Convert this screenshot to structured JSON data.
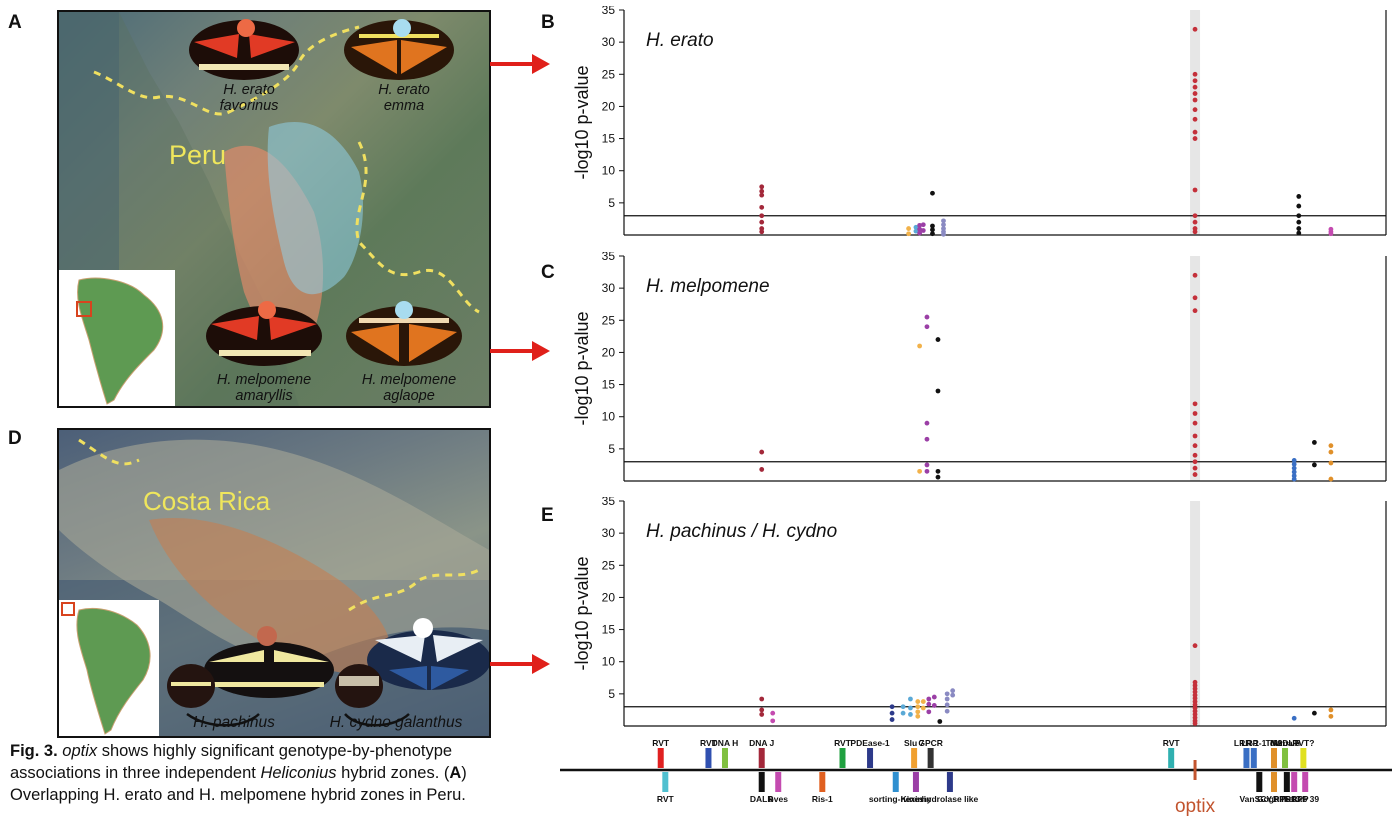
{
  "panels": {
    "A": "A",
    "B": "B",
    "C": "C",
    "D": "D",
    "E": "E"
  },
  "map_a": {
    "country": "Peru",
    "butterflies": [
      {
        "line1": "H. erato",
        "line2": "favorinus"
      },
      {
        "line1": "H. erato",
        "line2": "emma"
      },
      {
        "line1": "H. melpomene",
        "line2": "amaryllis"
      },
      {
        "line1": "H. melpomene",
        "line2": "aglaope"
      }
    ]
  },
  "map_d": {
    "country": "Costa Rica",
    "butterflies": [
      {
        "label": "H. pachinus"
      },
      {
        "label": "H. cydno galanthus"
      }
    ]
  },
  "caption": {
    "fig": "Fig. 3.",
    "gene": "optix",
    "text1": " shows highly significant genotype-by-phenotype associations in three independent ",
    "genus": "Heliconius",
    "text2": " hybrid zones. (",
    "A": "A",
    "text3": ")",
    "line3": "Overlapping H. erato and H. melpomene hybrid zones in Peru."
  },
  "chart_data": [
    {
      "type": "scatter",
      "title": "H. erato",
      "ylabel": "-log10 p-value",
      "ylim": [
        0,
        35
      ],
      "yticks": [
        "5",
        "10",
        "15",
        "20",
        "25",
        "30",
        "35"
      ],
      "threshold": 3,
      "x_range": [
        0,
        830
      ],
      "highlight_x": 622,
      "points": [
        {
          "x": 150,
          "y": 7.5,
          "c": "#a3283a"
        },
        {
          "x": 150,
          "y": 6.8,
          "c": "#a3283a"
        },
        {
          "x": 150,
          "y": 6.2,
          "c": "#a3283a"
        },
        {
          "x": 150,
          "y": 4.3,
          "c": "#a3283a"
        },
        {
          "x": 150,
          "y": 3.0,
          "c": "#a3283a"
        },
        {
          "x": 150,
          "y": 2.0,
          "c": "#a3283a"
        },
        {
          "x": 150,
          "y": 1.0,
          "c": "#a3283a"
        },
        {
          "x": 150,
          "y": 0.5,
          "c": "#a3283a"
        },
        {
          "x": 310,
          "y": 1.0,
          "c": "#f2b24a"
        },
        {
          "x": 310,
          "y": 0.2,
          "c": "#f2b24a"
        },
        {
          "x": 318,
          "y": 1.2,
          "c": "#5aa9d6"
        },
        {
          "x": 318,
          "y": 0.6,
          "c": "#5aa9d6"
        },
        {
          "x": 322,
          "y": 1.5,
          "c": "#9b3fa6"
        },
        {
          "x": 322,
          "y": 0.9,
          "c": "#9b3fa6"
        },
        {
          "x": 322,
          "y": 0.3,
          "c": "#9b3fa6"
        },
        {
          "x": 326,
          "y": 1.6,
          "c": "#9b3fa6"
        },
        {
          "x": 326,
          "y": 0.7,
          "c": "#9b3fa6"
        },
        {
          "x": 336,
          "y": 6.5,
          "c": "#111111"
        },
        {
          "x": 336,
          "y": 1.4,
          "c": "#111111"
        },
        {
          "x": 336,
          "y": 0.8,
          "c": "#111111"
        },
        {
          "x": 336,
          "y": 0.2,
          "c": "#111111"
        },
        {
          "x": 348,
          "y": 2.2,
          "c": "#8a8ac2"
        },
        {
          "x": 348,
          "y": 1.6,
          "c": "#8a8ac2"
        },
        {
          "x": 348,
          "y": 1.0,
          "c": "#8a8ac2"
        },
        {
          "x": 348,
          "y": 0.5,
          "c": "#8a8ac2"
        },
        {
          "x": 348,
          "y": 0.1,
          "c": "#8a8ac2"
        },
        {
          "x": 622,
          "y": 32,
          "c": "#c4303a"
        },
        {
          "x": 622,
          "y": 25,
          "c": "#c4303a"
        },
        {
          "x": 622,
          "y": 24,
          "c": "#c4303a"
        },
        {
          "x": 622,
          "y": 23,
          "c": "#c4303a"
        },
        {
          "x": 622,
          "y": 22,
          "c": "#c4303a"
        },
        {
          "x": 622,
          "y": 21,
          "c": "#c4303a"
        },
        {
          "x": 622,
          "y": 19.5,
          "c": "#c4303a"
        },
        {
          "x": 622,
          "y": 18,
          "c": "#c4303a"
        },
        {
          "x": 622,
          "y": 16,
          "c": "#c4303a"
        },
        {
          "x": 622,
          "y": 15,
          "c": "#c4303a"
        },
        {
          "x": 622,
          "y": 7,
          "c": "#c4303a"
        },
        {
          "x": 622,
          "y": 3,
          "c": "#c4303a"
        },
        {
          "x": 622,
          "y": 2,
          "c": "#c4303a"
        },
        {
          "x": 622,
          "y": 1,
          "c": "#c4303a"
        },
        {
          "x": 622,
          "y": 0.5,
          "c": "#c4303a"
        },
        {
          "x": 735,
          "y": 6.0,
          "c": "#111111"
        },
        {
          "x": 735,
          "y": 4.5,
          "c": "#111111"
        },
        {
          "x": 735,
          "y": 3.0,
          "c": "#111111"
        },
        {
          "x": 735,
          "y": 2.0,
          "c": "#111111"
        },
        {
          "x": 735,
          "y": 1.0,
          "c": "#111111"
        },
        {
          "x": 735,
          "y": 0.3,
          "c": "#111111"
        },
        {
          "x": 770,
          "y": 0.9,
          "c": "#c44bb0"
        },
        {
          "x": 770,
          "y": 0.5,
          "c": "#c44bb0"
        },
        {
          "x": 770,
          "y": 0.2,
          "c": "#c44bb0"
        }
      ]
    },
    {
      "type": "scatter",
      "title": "H. melpomene",
      "ylabel": "-log10 p-value",
      "ylim": [
        0,
        35
      ],
      "yticks": [
        "5",
        "10",
        "15",
        "20",
        "25",
        "30",
        "35"
      ],
      "threshold": 3,
      "x_range": [
        0,
        830
      ],
      "highlight_x": 622,
      "points": [
        {
          "x": 150,
          "y": 4.5,
          "c": "#a3283a"
        },
        {
          "x": 150,
          "y": 1.8,
          "c": "#a3283a"
        },
        {
          "x": 322,
          "y": 21,
          "c": "#f2b24a"
        },
        {
          "x": 322,
          "y": 1.5,
          "c": "#f2b24a"
        },
        {
          "x": 330,
          "y": 25.5,
          "c": "#9b3fa6"
        },
        {
          "x": 330,
          "y": 24,
          "c": "#9b3fa6"
        },
        {
          "x": 330,
          "y": 9,
          "c": "#9b3fa6"
        },
        {
          "x": 330,
          "y": 6.5,
          "c": "#9b3fa6"
        },
        {
          "x": 330,
          "y": 2.5,
          "c": "#9b3fa6"
        },
        {
          "x": 330,
          "y": 1.5,
          "c": "#9b3fa6"
        },
        {
          "x": 342,
          "y": 22,
          "c": "#111111"
        },
        {
          "x": 342,
          "y": 14,
          "c": "#111111"
        },
        {
          "x": 342,
          "y": 1.5,
          "c": "#111111"
        },
        {
          "x": 342,
          "y": 0.6,
          "c": "#111111"
        },
        {
          "x": 622,
          "y": 32,
          "c": "#c4303a"
        },
        {
          "x": 622,
          "y": 28.5,
          "c": "#c4303a"
        },
        {
          "x": 622,
          "y": 26.5,
          "c": "#c4303a"
        },
        {
          "x": 622,
          "y": 12,
          "c": "#c4303a"
        },
        {
          "x": 622,
          "y": 10.5,
          "c": "#c4303a"
        },
        {
          "x": 622,
          "y": 9,
          "c": "#c4303a"
        },
        {
          "x": 622,
          "y": 7,
          "c": "#c4303a"
        },
        {
          "x": 622,
          "y": 5.5,
          "c": "#c4303a"
        },
        {
          "x": 622,
          "y": 4,
          "c": "#c4303a"
        },
        {
          "x": 622,
          "y": 3,
          "c": "#c4303a"
        },
        {
          "x": 622,
          "y": 2,
          "c": "#c4303a"
        },
        {
          "x": 622,
          "y": 1,
          "c": "#c4303a"
        },
        {
          "x": 730,
          "y": 3.2,
          "c": "#3a6fc4"
        },
        {
          "x": 730,
          "y": 2.6,
          "c": "#3a6fc4"
        },
        {
          "x": 730,
          "y": 2.0,
          "c": "#3a6fc4"
        },
        {
          "x": 730,
          "y": 1.4,
          "c": "#3a6fc4"
        },
        {
          "x": 730,
          "y": 0.8,
          "c": "#3a6fc4"
        },
        {
          "x": 730,
          "y": 0.3,
          "c": "#3a6fc4"
        },
        {
          "x": 752,
          "y": 6.0,
          "c": "#111111"
        },
        {
          "x": 752,
          "y": 2.5,
          "c": "#111111"
        },
        {
          "x": 770,
          "y": 5.5,
          "c": "#e0902a"
        },
        {
          "x": 770,
          "y": 4.5,
          "c": "#e0902a"
        },
        {
          "x": 770,
          "y": 2.8,
          "c": "#e0902a"
        },
        {
          "x": 770,
          "y": 0.3,
          "c": "#e0902a"
        }
      ]
    },
    {
      "type": "scatter",
      "title": "H. pachinus / H. cydno",
      "ylabel": "-log10 p-value",
      "ylim": [
        0,
        35
      ],
      "yticks": [
        "5",
        "10",
        "15",
        "20",
        "25",
        "30",
        "35"
      ],
      "threshold": 3,
      "x_range": [
        0,
        830
      ],
      "highlight_x": 622,
      "points": [
        {
          "x": 150,
          "y": 4.2,
          "c": "#a3283a"
        },
        {
          "x": 150,
          "y": 2.5,
          "c": "#a3283a"
        },
        {
          "x": 150,
          "y": 1.8,
          "c": "#a3283a"
        },
        {
          "x": 162,
          "y": 2.0,
          "c": "#c44bb0"
        },
        {
          "x": 162,
          "y": 0.8,
          "c": "#c44bb0"
        },
        {
          "x": 292,
          "y": 3.0,
          "c": "#2d3a8a"
        },
        {
          "x": 292,
          "y": 2.0,
          "c": "#2d3a8a"
        },
        {
          "x": 292,
          "y": 1.0,
          "c": "#2d3a8a"
        },
        {
          "x": 304,
          "y": 3.0,
          "c": "#5aa9d6"
        },
        {
          "x": 304,
          "y": 2.0,
          "c": "#5aa9d6"
        },
        {
          "x": 312,
          "y": 4.2,
          "c": "#5aa9d6"
        },
        {
          "x": 312,
          "y": 2.8,
          "c": "#5aa9d6"
        },
        {
          "x": 312,
          "y": 1.8,
          "c": "#5aa9d6"
        },
        {
          "x": 320,
          "y": 3.8,
          "c": "#f2b24a"
        },
        {
          "x": 320,
          "y": 3.0,
          "c": "#f2b24a"
        },
        {
          "x": 320,
          "y": 2.2,
          "c": "#f2b24a"
        },
        {
          "x": 320,
          "y": 1.5,
          "c": "#f2b24a"
        },
        {
          "x": 326,
          "y": 3.8,
          "c": "#f2b24a"
        },
        {
          "x": 326,
          "y": 2.8,
          "c": "#f2b24a"
        },
        {
          "x": 332,
          "y": 4.2,
          "c": "#9b3fa6"
        },
        {
          "x": 332,
          "y": 3.4,
          "c": "#9b3fa6"
        },
        {
          "x": 332,
          "y": 2.2,
          "c": "#9b3fa6"
        },
        {
          "x": 338,
          "y": 4.5,
          "c": "#9b3fa6"
        },
        {
          "x": 338,
          "y": 3.2,
          "c": "#9b3fa6"
        },
        {
          "x": 344,
          "y": 0.7,
          "c": "#111111"
        },
        {
          "x": 352,
          "y": 5.0,
          "c": "#8a8ac2"
        },
        {
          "x": 352,
          "y": 4.2,
          "c": "#8a8ac2"
        },
        {
          "x": 352,
          "y": 3.3,
          "c": "#8a8ac2"
        },
        {
          "x": 352,
          "y": 2.3,
          "c": "#8a8ac2"
        },
        {
          "x": 358,
          "y": 5.5,
          "c": "#8a8ac2"
        },
        {
          "x": 358,
          "y": 4.8,
          "c": "#8a8ac2"
        },
        {
          "x": 622,
          "y": 12.5,
          "c": "#c4303a"
        },
        {
          "x": 622,
          "y": 6.8,
          "c": "#c4303a"
        },
        {
          "x": 622,
          "y": 6.3,
          "c": "#c4303a"
        },
        {
          "x": 622,
          "y": 5.8,
          "c": "#c4303a"
        },
        {
          "x": 622,
          "y": 5.3,
          "c": "#c4303a"
        },
        {
          "x": 622,
          "y": 4.8,
          "c": "#c4303a"
        },
        {
          "x": 622,
          "y": 4.3,
          "c": "#c4303a"
        },
        {
          "x": 622,
          "y": 3.8,
          "c": "#c4303a"
        },
        {
          "x": 622,
          "y": 3.3,
          "c": "#c4303a"
        },
        {
          "x": 622,
          "y": 2.8,
          "c": "#c4303a"
        },
        {
          "x": 622,
          "y": 2.3,
          "c": "#c4303a"
        },
        {
          "x": 622,
          "y": 1.8,
          "c": "#c4303a"
        },
        {
          "x": 622,
          "y": 1.3,
          "c": "#c4303a"
        },
        {
          "x": 622,
          "y": 0.8,
          "c": "#c4303a"
        },
        {
          "x": 622,
          "y": 0.4,
          "c": "#c4303a"
        },
        {
          "x": 730,
          "y": 1.2,
          "c": "#3a6fc4"
        },
        {
          "x": 752,
          "y": 2.0,
          "c": "#111111"
        },
        {
          "x": 770,
          "y": 2.5,
          "c": "#e0902a"
        },
        {
          "x": 770,
          "y": 1.5,
          "c": "#e0902a"
        }
      ]
    }
  ],
  "gene_track": {
    "highlight": "optix",
    "top": [
      {
        "label": "RVT",
        "x": 40,
        "c": "#e02020"
      },
      {
        "label": "RVT",
        "x": 92,
        "c": "#3050b0"
      },
      {
        "label": "DNA H",
        "x": 110,
        "c": "#80c040"
      },
      {
        "label": "DNA J",
        "x": 150,
        "c": "#a3283a"
      },
      {
        "label": "RVT",
        "x": 238,
        "c": "#20a040"
      },
      {
        "label": "PDEase-1",
        "x": 268,
        "c": "#2d3a8a"
      },
      {
        "label": "Slu 7",
        "x": 316,
        "c": "#f0a030"
      },
      {
        "label": "GPCR",
        "x": 334,
        "c": "#333333"
      },
      {
        "label": "RVT",
        "x": 596,
        "c": "#30b0b0"
      },
      {
        "label": "LRR-1",
        "x": 678,
        "c": "#3a6fc4"
      },
      {
        "label": "LRR-1",
        "x": 686,
        "c": "#3a6fc4"
      },
      {
        "label": "TM2",
        "x": 708,
        "c": "#e0902a"
      },
      {
        "label": "NADUF",
        "x": 720,
        "c": "#80c040"
      },
      {
        "label": "domain",
        "x": 720,
        "c": "#80c040"
      },
      {
        "label": "RVT?",
        "x": 740,
        "c": "#e0e020"
      }
    ],
    "bottom": [
      {
        "label": "RVT",
        "x": 45,
        "c": "#50c0d0"
      },
      {
        "label": "DALR",
        "x": 150,
        "c": "#111111"
      },
      {
        "label": "bves",
        "x": 168,
        "c": "#c44bb0"
      },
      {
        "label": "Ris-1",
        "x": 216,
        "c": "#e06020"
      },
      {
        "label": "sorting-nexin",
        "x": 296,
        "c": "#3090d0"
      },
      {
        "label": "Kinesin",
        "x": 318,
        "c": "#9b3fa6"
      },
      {
        "label": "hydrolase like",
        "x": 355,
        "c": "#2d3a8a"
      },
      {
        "label": "Van Gogh",
        "x": 692,
        "c": "#111111"
      },
      {
        "label": "SCY1 like",
        "x": 708,
        "c": "#e0902a"
      },
      {
        "label": "RPS13",
        "x": 722,
        "c": "#111111"
      },
      {
        "label": "Rab 39",
        "x": 742,
        "c": "#c44bb0"
      },
      {
        "label": "TRAPP",
        "x": 730,
        "c": "#c44bb0"
      }
    ]
  }
}
